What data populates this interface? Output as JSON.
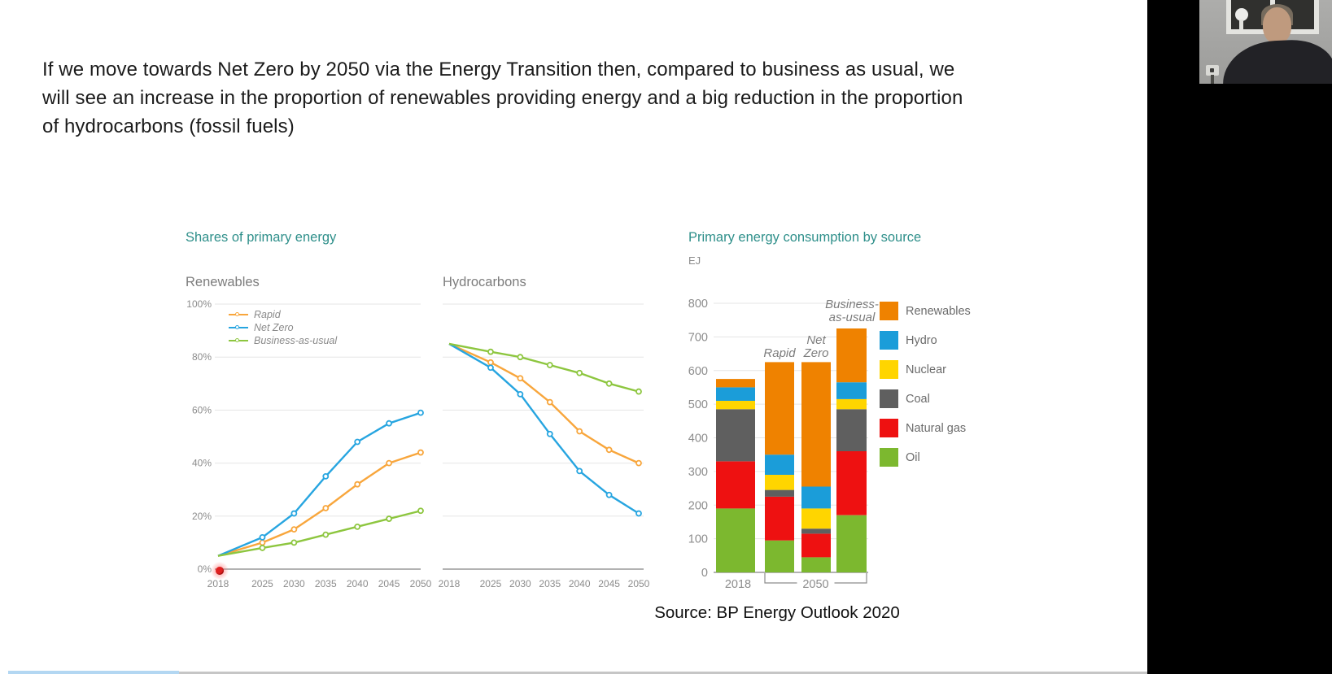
{
  "slide": {
    "headline": "If we move towards Net Zero by 2050 via the Energy Transition then, compared to business as usual, we will see an increase in the proportion of renewables providing energy and a big reduction in the proportion of hydrocarbons (fossil fuels)",
    "source": "Source: BP Energy Outlook 2020"
  },
  "colors": {
    "accent_teal": "#2E8F8A",
    "label_gray": "#7D7D7D",
    "tick_gray": "#8C8C8C",
    "grid_gray": "#E5E5E5",
    "axis_gray": "#999999",
    "laser_red": "#E02020",
    "progress_blue": "#B3D7F2",
    "progress_gray": "#C6C6C6"
  },
  "chart_data": [
    {
      "id": "renewables_share",
      "type": "line",
      "title": "Shares of primary energy",
      "subtitle": "Renewables",
      "x": [
        2018,
        2025,
        2030,
        2035,
        2040,
        2045,
        2050
      ],
      "series": [
        {
          "name": "Rapid",
          "color": "#F8A63C",
          "values": [
            5,
            10,
            15,
            23,
            32,
            40,
            44
          ]
        },
        {
          "name": "Net Zero",
          "color": "#27A5E0",
          "values": [
            5,
            12,
            21,
            35,
            48,
            55,
            59
          ]
        },
        {
          "name": "Business-as-usual",
          "color": "#8DC63F",
          "values": [
            5,
            8,
            10,
            13,
            16,
            19,
            22
          ]
        }
      ],
      "ylim": [
        0,
        100
      ],
      "yticks": [
        0,
        20,
        40,
        60,
        80,
        100
      ],
      "ytick_suffix": "%",
      "grid": true,
      "legend_position": "inside-top-left"
    },
    {
      "id": "hydrocarbons_share",
      "type": "line",
      "subtitle": "Hydrocarbons",
      "x": [
        2018,
        2025,
        2030,
        2035,
        2040,
        2045,
        2050
      ],
      "series": [
        {
          "name": "Rapid",
          "color": "#F8A63C",
          "values": [
            85,
            78,
            72,
            63,
            52,
            45,
            40
          ]
        },
        {
          "name": "Net Zero",
          "color": "#27A5E0",
          "values": [
            85,
            76,
            66,
            51,
            37,
            28,
            21
          ]
        },
        {
          "name": "Business-as-usual",
          "color": "#8DC63F",
          "values": [
            85,
            82,
            80,
            77,
            74,
            70,
            67
          ]
        }
      ],
      "ylim": [
        0,
        100
      ],
      "yticks": [
        0,
        20,
        40,
        60,
        80,
        100
      ],
      "show_ytick_labels": false,
      "grid": true
    },
    {
      "id": "consumption_by_source",
      "type": "stacked-bar",
      "title": "Primary energy consumption by source",
      "unit": "EJ",
      "categories": [
        "2018",
        "Rapid",
        "Net Zero",
        "Business-as-usual"
      ],
      "bar_labels": [
        [],
        [
          "Rapid"
        ],
        [
          "Net",
          "Zero"
        ],
        [
          "Business-",
          "as-usual"
        ]
      ],
      "series": [
        {
          "name": "Oil",
          "color": "#7CB82F",
          "values": [
            190,
            95,
            45,
            170
          ]
        },
        {
          "name": "Natural gas",
          "color": "#EE1111",
          "values": [
            140,
            130,
            70,
            190
          ]
        },
        {
          "name": "Coal",
          "color": "#5F5F5F",
          "values": [
            155,
            20,
            15,
            125
          ]
        },
        {
          "name": "Nuclear",
          "color": "#FFD500",
          "values": [
            25,
            45,
            60,
            30
          ]
        },
        {
          "name": "Hydro",
          "color": "#1B9DD9",
          "values": [
            40,
            60,
            65,
            50
          ]
        },
        {
          "name": "Renewables",
          "color": "#EF8200",
          "values": [
            25,
            275,
            370,
            160
          ]
        }
      ],
      "legend_order": [
        "Renewables",
        "Hydro",
        "Nuclear",
        "Coal",
        "Natural gas",
        "Oil"
      ],
      "ylim": [
        0,
        800
      ],
      "yticks": [
        0,
        100,
        200,
        300,
        400,
        500,
        600,
        700,
        800
      ],
      "x_axis": {
        "left_label": "2018",
        "bracket_label": "2050"
      }
    }
  ]
}
